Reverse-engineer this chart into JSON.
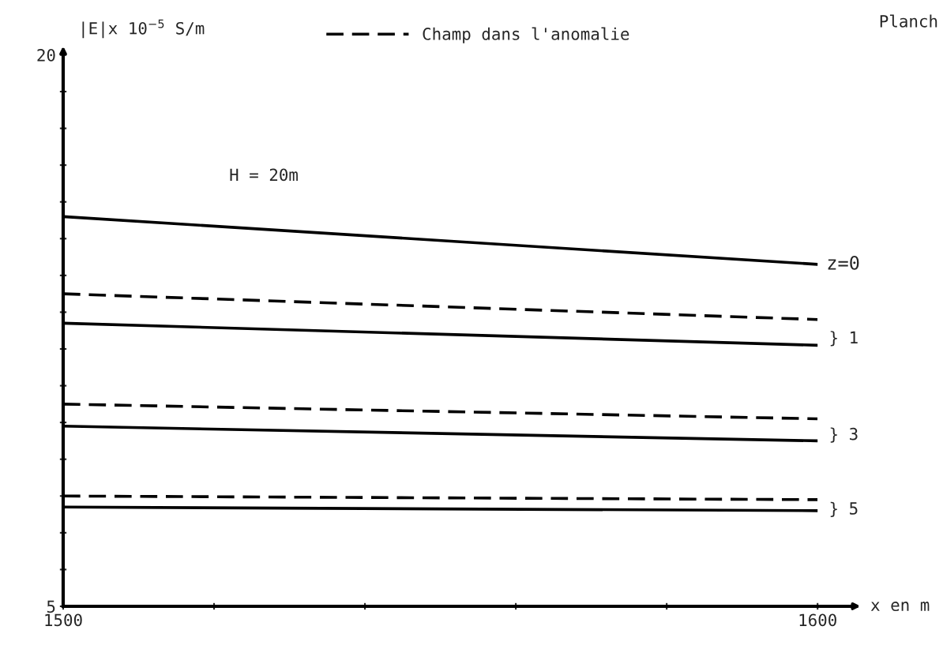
{
  "chart_data": {
    "type": "line",
    "ylabel": "|E|x 10$^{−5}$ S/m",
    "xlabel": "x en m",
    "x": [
      1500,
      1600
    ],
    "series": [
      {
        "name": "Champ dans l'anomalie",
        "color": "#000000",
        "line_style": "dashed",
        "values": [
          13.5,
          12.8
        ]
      },
      {
        "color": "#000000",
        "line_style": "solid",
        "values": [
          15.6,
          14.3
        ]
      },
      {
        "color": "#000000",
        "line_style": "solid",
        "values": [
          12.7,
          12.1
        ]
      },
      {
        "color": "#000000",
        "line_style": "dashed",
        "values": [
          10.5,
          10.1
        ]
      },
      {
        "color": "#000000",
        "line_style": "solid",
        "values": [
          9.9,
          9.5
        ]
      },
      {
        "color": "#000000",
        "line_style": "dashed",
        "values": [
          8.0,
          7.9
        ]
      },
      {
        "color": "#000000",
        "line_style": "solid",
        "values": [
          7.7,
          7.6
        ]
      }
    ],
    "xlim": [
      1500,
      1600
    ],
    "ylim": [
      5,
      20
    ],
    "xticks": [
      1500,
      {
        "value": 1520,
        "label": null
      },
      {
        "value": 1540,
        "label": null
      },
      {
        "value": 1560,
        "label": null
      },
      {
        "value": 1580,
        "label": null
      },
      1600
    ],
    "yticks": [
      5,
      {
        "value": 6,
        "label": null
      },
      {
        "value": 7,
        "label": null
      },
      {
        "value": 8,
        "label": null
      },
      {
        "value": 9,
        "label": null
      },
      {
        "value": 10,
        "label": null
      },
      {
        "value": 11,
        "label": null
      },
      {
        "value": 12,
        "label": null
      },
      {
        "value": 13,
        "label": null
      },
      {
        "value": 14,
        "label": null
      },
      {
        "value": 15,
        "label": null
      },
      {
        "value": 16,
        "label": null
      },
      {
        "value": 17,
        "label": null
      },
      {
        "value": 18,
        "label": null
      },
      {
        "value": 19,
        "label": null
      },
      20
    ],
    "legend": "top",
    "grid": false,
    "marker": "none",
    "annotations": [
      "H = 20m",
      "Planch",
      {
        "text": "z=0",
        "x": 1600,
        "y": 14.3
      },
      "} 1",
      "} 3",
      "} 5"
    ]
  }
}
